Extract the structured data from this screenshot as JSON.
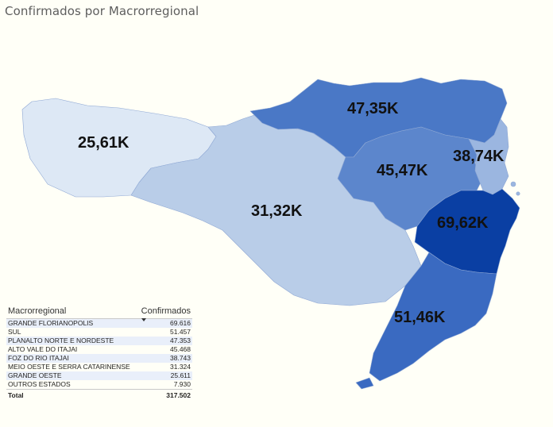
{
  "title": "Confirmados por Macrorregional",
  "map": {
    "regions": [
      {
        "key": "grande_oeste",
        "label": "25,61K",
        "color": "#dde8f5"
      },
      {
        "key": "meio_oeste",
        "label": "31,32K",
        "color": "#b9cde8"
      },
      {
        "key": "planalto_norte",
        "label": "47,35K",
        "color": "#4a78c6"
      },
      {
        "key": "alto_vale",
        "label": "45,47K",
        "color": "#5c86cc"
      },
      {
        "key": "foz_itajai",
        "label": "38,74K",
        "color": "#9bb6e0"
      },
      {
        "key": "grande_florianopolis",
        "label": "69,62K",
        "color": "#0a3fa3"
      },
      {
        "key": "sul",
        "label": "51,46K",
        "color": "#3a6ac1"
      }
    ]
  },
  "table": {
    "col_region": "Macrorregional",
    "col_value": "Confirmados",
    "rows": [
      {
        "name": "GRANDE FLORIANOPOLIS",
        "value": "69.616"
      },
      {
        "name": "SUL",
        "value": "51.457"
      },
      {
        "name": "PLANALTO NORTE E NORDESTE",
        "value": "47.353"
      },
      {
        "name": "ALTO VALE DO ITAJAI",
        "value": "45.468"
      },
      {
        "name": "FOZ DO RIO ITAJAI",
        "value": "38.743"
      },
      {
        "name": "MEIO OESTE E SERRA CATARINENSE",
        "value": "31.324"
      },
      {
        "name": "GRANDE OESTE",
        "value": "25.611"
      },
      {
        "name": "OUTROS ESTADOS",
        "value": "7.930"
      }
    ],
    "total_label": "Total",
    "total_value": "317.502"
  }
}
